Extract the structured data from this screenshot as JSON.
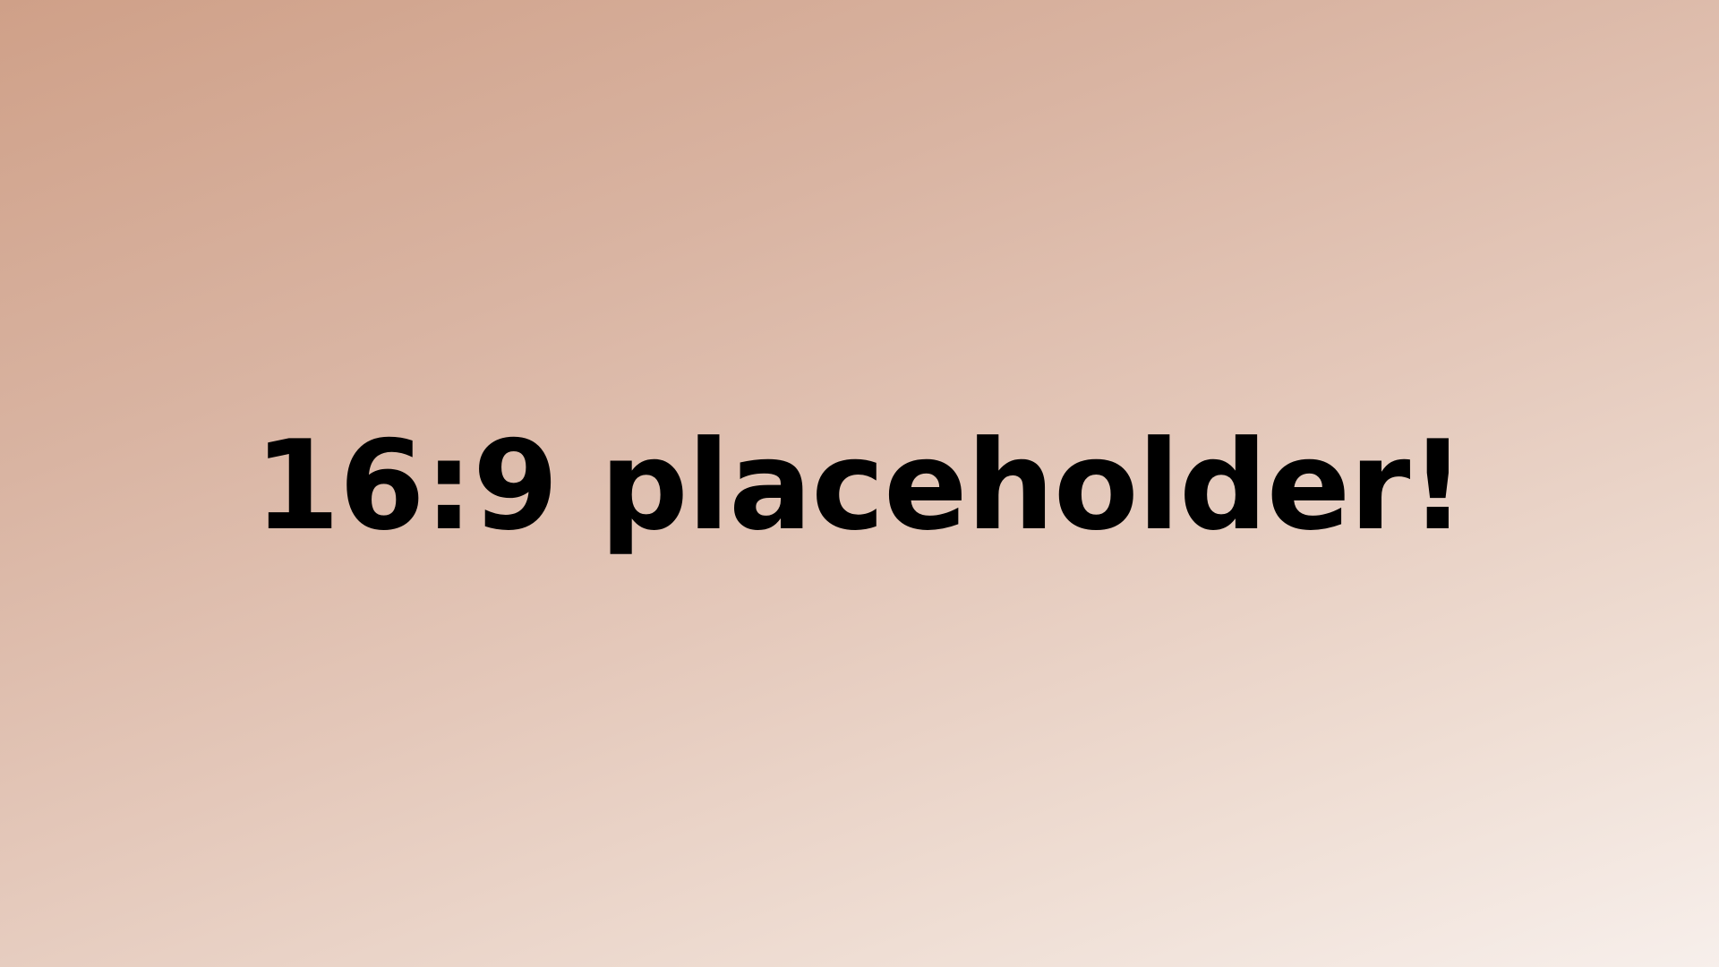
{
  "placeholder": {
    "text": "16:9 placeholder!",
    "text_color": "#000000",
    "background_colors": [
      "#cfa088",
      "#f7efeb"
    ]
  }
}
